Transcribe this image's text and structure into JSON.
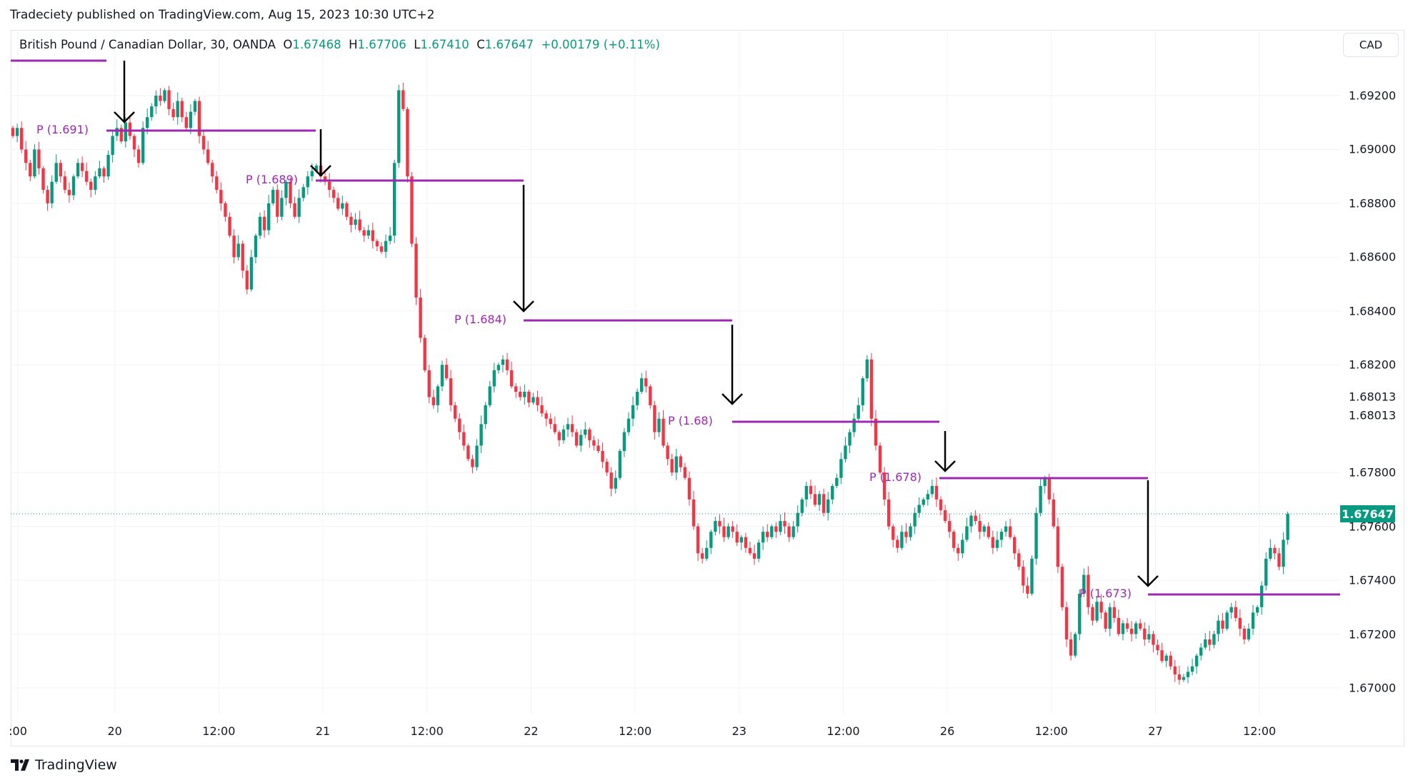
{
  "header": {
    "published": "Tradeciety published on TradingView.com, Aug 15, 2023 10:30 UTC+2"
  },
  "legend": {
    "symbol": "British Pound / Canadian Dollar, 30, OANDA",
    "o_label": "O",
    "o": "1.67468",
    "h_label": "H",
    "h": "1.67706",
    "l_label": "L",
    "l": "1.67410",
    "c_label": "C",
    "c": "1.67647",
    "change": "+0.00179 (+0.11%)"
  },
  "currency_button": "CAD",
  "footer": {
    "brand": "TradingView"
  },
  "colors": {
    "up": "#089981",
    "down": "#f23645",
    "pivot": "#9c27b0",
    "arrow": "#000000"
  },
  "annotations": {
    "pivots": [
      "P (1.691)",
      "P (1.689)",
      "P (1.684)",
      "P (1.68)",
      "P (1.678)",
      "P (1.673)"
    ]
  },
  "chart_data": {
    "type": "candlestick",
    "ylim": [
      1.669,
      1.6935
    ],
    "grid": true,
    "y_ticks": [
      "1.69200",
      "1.69000",
      "1.68800",
      "1.68600",
      "1.68400",
      "1.68200",
      "1.67800",
      "1.67600",
      "1.67400",
      "1.67200",
      "1.67000"
    ],
    "y_tick_values": [
      1.692,
      1.69,
      1.688,
      1.686,
      1.684,
      1.682,
      1.678,
      1.676,
      1.674,
      1.672,
      1.67
    ],
    "extra_axis_labels": [
      "1.68013",
      "1.68013"
    ],
    "last_price": "1.67647",
    "x_ticks": [
      ":00",
      "20",
      "12:00",
      "21",
      "12:00",
      "22",
      "12:00",
      "23",
      "12:00",
      "26",
      "12:00",
      "27",
      "12:00"
    ],
    "closes": [
      1.6905,
      1.6908,
      1.69,
      1.6895,
      1.689,
      1.69,
      1.6893,
      1.6885,
      1.688,
      1.6888,
      1.6895,
      1.689,
      1.6885,
      1.6883,
      1.689,
      1.6895,
      1.6892,
      1.6888,
      1.6885,
      1.689,
      1.6893,
      1.689,
      1.6898,
      1.6905,
      1.6908,
      1.6903,
      1.691,
      1.6905,
      1.69,
      1.6895,
      1.6908,
      1.6912,
      1.6916,
      1.692,
      1.6918,
      1.6922,
      1.6915,
      1.6912,
      1.6918,
      1.6912,
      1.6908,
      1.6914,
      1.6918,
      1.6905,
      1.69,
      1.6895,
      1.689,
      1.6885,
      1.688,
      1.6875,
      1.6868,
      1.686,
      1.6865,
      1.6855,
      1.6848,
      1.686,
      1.6868,
      1.6875,
      1.687,
      1.688,
      1.6885,
      1.6875,
      1.6882,
      1.6888,
      1.688,
      1.6875,
      1.6882,
      1.6886,
      1.689,
      1.6892,
      1.6894,
      1.689,
      1.6888,
      1.6885,
      1.6882,
      1.6878,
      1.688,
      1.6875,
      1.6872,
      1.6874,
      1.687,
      1.6868,
      1.687,
      1.6866,
      1.6864,
      1.6862,
      1.6866,
      1.6868,
      1.6895,
      1.6922,
      1.6915,
      1.689,
      1.6865,
      1.6845,
      1.683,
      1.6818,
      1.6808,
      1.6805,
      1.6812,
      1.682,
      1.6815,
      1.6805,
      1.68,
      1.6795,
      1.679,
      1.6785,
      1.6782,
      1.679,
      1.6798,
      1.6805,
      1.6812,
      1.6818,
      1.682,
      1.6822,
      1.6818,
      1.6812,
      1.681,
      1.6808,
      1.681,
      1.6806,
      1.6808,
      1.6805,
      1.6802,
      1.68,
      1.6798,
      1.6795,
      1.6792,
      1.6796,
      1.6798,
      1.6795,
      1.679,
      1.6794,
      1.6796,
      1.6792,
      1.679,
      1.6788,
      1.6784,
      1.678,
      1.6774,
      1.6778,
      1.6788,
      1.6795,
      1.68,
      1.6805,
      1.681,
      1.6815,
      1.6812,
      1.6805,
      1.6795,
      1.68,
      1.679,
      1.6785,
      1.678,
      1.6786,
      1.6782,
      1.6778,
      1.677,
      1.676,
      1.675,
      1.6748,
      1.6752,
      1.6758,
      1.6762,
      1.676,
      1.6756,
      1.676,
      1.6758,
      1.6754,
      1.6756,
      1.6752,
      1.675,
      1.6748,
      1.6754,
      1.6758,
      1.6756,
      1.676,
      1.6758,
      1.6762,
      1.676,
      1.6756,
      1.676,
      1.6765,
      1.677,
      1.6775,
      1.6772,
      1.6768,
      1.6772,
      1.6765,
      1.677,
      1.6775,
      1.6778,
      1.6785,
      1.679,
      1.6795,
      1.68,
      1.6805,
      1.6815,
      1.6822,
      1.68,
      1.679,
      1.678,
      1.677,
      1.676,
      1.6755,
      1.6752,
      1.6758,
      1.6756,
      1.676,
      1.6765,
      1.6768,
      1.677,
      1.6772,
      1.6775,
      1.677,
      1.6766,
      1.6762,
      1.6758,
      1.6752,
      1.675,
      1.6755,
      1.676,
      1.6764,
      1.6762,
      1.6758,
      1.676,
      1.6756,
      1.6752,
      1.6755,
      1.6758,
      1.676,
      1.6756,
      1.675,
      1.6745,
      1.6738,
      1.6735,
      1.6748,
      1.6765,
      1.6775,
      1.6778,
      1.677,
      1.676,
      1.6745,
      1.673,
      1.6718,
      1.6712,
      1.672,
      1.6735,
      1.6742,
      1.673,
      1.6725,
      1.6732,
      1.6728,
      1.6722,
      1.673,
      1.6726,
      1.672,
      1.6724,
      1.6722,
      1.672,
      1.6724,
      1.6722,
      1.6718,
      1.672,
      1.6716,
      1.6714,
      1.671,
      1.6712,
      1.6708,
      1.6705,
      1.6703,
      1.6704,
      1.6706,
      1.6708,
      1.6712,
      1.6715,
      1.6718,
      1.6716,
      1.672,
      1.6725,
      1.6722,
      1.6728,
      1.673,
      1.6726,
      1.6722,
      1.6718,
      1.6722,
      1.6728,
      1.673,
      1.6738,
      1.6748,
      1.6752,
      1.675,
      1.6745,
      1.6755,
      1.67647
    ]
  }
}
